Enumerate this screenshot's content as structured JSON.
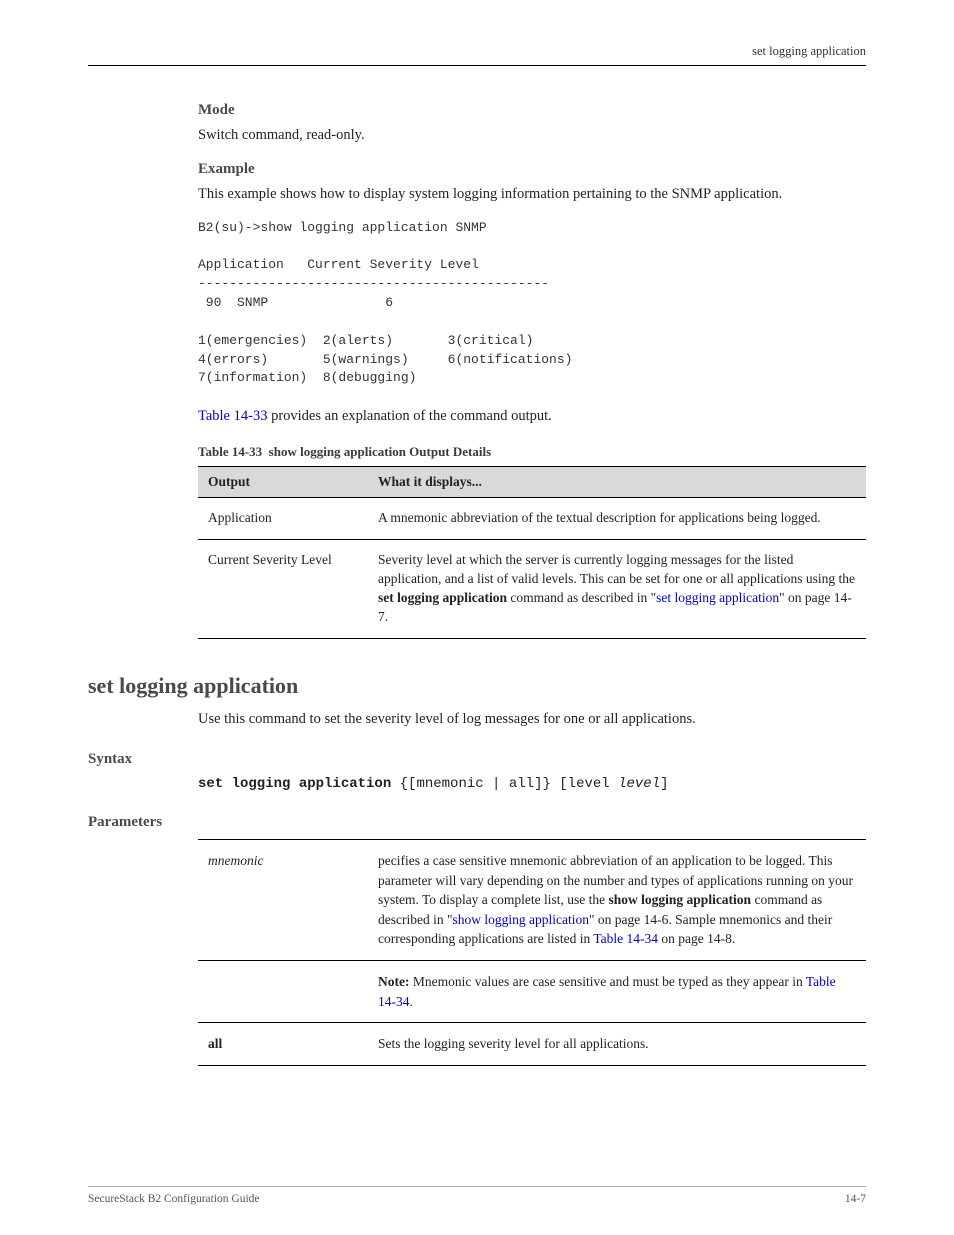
{
  "running_head": "set logging application",
  "mode": {
    "heading": "Mode",
    "text": "Switch command, read-only."
  },
  "example": {
    "heading": "Example",
    "intro": "This example shows how to display system logging information pertaining to the SNMP application.",
    "code": "B2(su)->show logging application SNMP\n\nApplication   Current Severity Level\n---------------------------------------------\n 90  SNMP               6\n\n1(emergencies)  2(alerts)       3(critical)\n4(errors)       5(warnings)     6(notifications)\n7(information)  8(debugging)"
  },
  "ref_sentence": {
    "prefix": "",
    "link": "Table 14-33",
    "suffix": " provides an explanation of the command output."
  },
  "out_table": {
    "caption_label": "Table 14-33",
    "caption_text": "show logging application Output Details",
    "head": {
      "c1": "Output",
      "c2": "What it displays..."
    },
    "rows": [
      {
        "c1": "Application",
        "c2": "A mnemonic abbreviation of the textual description for applications being logged."
      },
      {
        "c1": "Current Severity Level",
        "c2_pre": "Severity level at which the server is currently logging messages for the listed application, and a list of valid levels. This can be set for one or all applications using the ",
        "c2_bold": "set logging application",
        "c2_post_bold": " command as described in \"",
        "c2_link": "set logging application",
        "c2_post": "\" on page 14-7. "
      }
    ]
  },
  "cmd": {
    "title": "set logging application",
    "desc": "Use this command to set the severity level of log messages for one or all applications.",
    "syntax_heading": "Syntax",
    "syntax_pre": "set logging application ",
    "syntax_choice": "{[mnemonic | all]}",
    "syntax_post_pre": " [level ",
    "syntax_post_it": "level",
    "syntax_post_end": "]",
    "params_heading": "Parameters"
  },
  "params": {
    "rows": [
      {
        "c1": "mnemonic",
        "c2_a": "pecifies a case sensitive mnemonic abbreviation of an application to be logged. This parameter will vary depending on the number and types of applications running on your system. To display a complete list, use the ",
        "c2_bold": "show logging application",
        "c2_b": " command as described in \"",
        "c2_link1": "show logging application",
        "c2_c": "\" on page 14-6. Sample mnemonics and their corresponding applications are listed in ",
        "c2_link2": "Table 14-34",
        "c2_d": " on page 14-8."
      },
      {
        "c1_note_bold": "Note:",
        "c1_note": " Mnemonic values are case sensitive and must be typed as they appear in ",
        "c1_note_link": "Table 14-34",
        "c1_note_end": "."
      },
      {
        "c1": "all",
        "c2": "Sets the logging severity level for all applications."
      }
    ]
  },
  "footer": {
    "left": "SecureStack B2 Configuration Guide",
    "right": "14-7"
  }
}
